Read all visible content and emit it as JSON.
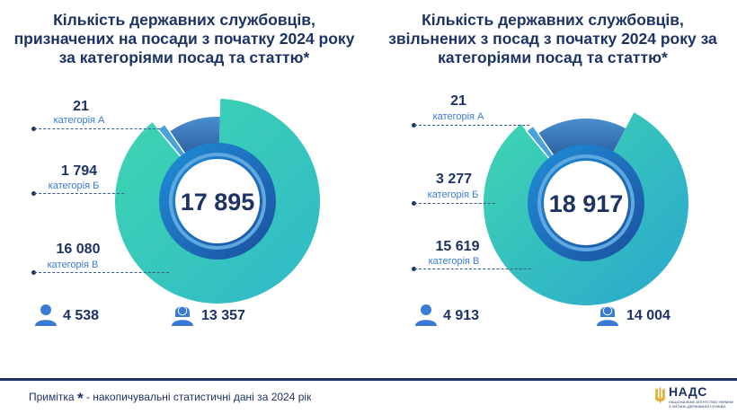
{
  "charts": [
    {
      "title_lines": [
        "Кількість державних службовців,",
        "призначених на посади з початку 2024 року",
        "за категоріями посад та статтю*"
      ],
      "total": "17 895",
      "categories": [
        {
          "value": "21",
          "label": "категорія А"
        },
        {
          "value": "1 794",
          "label": "категорія Б"
        },
        {
          "value": "16 080",
          "label": "категорія В"
        }
      ],
      "male": "4 538",
      "female": "13 357"
    },
    {
      "title_lines": [
        "Кількість державних службовців,",
        "звільнених з посад з початку 2024 року за",
        "категоріями посад та статтю*"
      ],
      "total": "18 917",
      "categories": [
        {
          "value": "21",
          "label": "категорія А"
        },
        {
          "value": "3 277",
          "label": "категорія Б"
        },
        {
          "value": "15 619",
          "label": "категорія В"
        }
      ],
      "male": "4 913",
      "female": "14 004"
    }
  ],
  "chart_data": [
    {
      "type": "pie",
      "title": "Кількість державних службовців, призначених на посади з початку 2024 року за категоріями посад та статтю*",
      "categories": [
        "категорія А",
        "категорія Б",
        "категорія В"
      ],
      "values": [
        21,
        1794,
        16080
      ],
      "total": 17895,
      "gender": {
        "male": 4538,
        "female": 13357
      }
    },
    {
      "type": "pie",
      "title": "Кількість державних службовців, звільнених з посад з початку 2024 року за категоріями посад та статтю*",
      "categories": [
        "категорія А",
        "категорія Б",
        "категорія В"
      ],
      "values": [
        21,
        3277,
        15619
      ],
      "total": 18917,
      "gender": {
        "male": 4913,
        "female": 14004
      }
    }
  ],
  "footer": {
    "note_prefix": "Примітка ",
    "note_star": "*",
    "note_text": " - накопичувальні статистичні дані за 2024 рік",
    "logo_text": "НАДС",
    "logo_sub_1": "НАЦІОНАЛЬНЕ АГЕНТСТВО УКРАЇНИ",
    "logo_sub_2": "З ПИТАНЬ ДЕРЖАВНОЇ СЛУЖБИ"
  },
  "colors": {
    "title": "#1d3366",
    "cat_a": "#4aa3d8",
    "cat_b": "#3f7fc4",
    "cat_v": "#3fd6b0",
    "inner_ring": "#1e6fc0",
    "category_label": "#3a7bd5"
  },
  "icons": [
    "male-person-icon",
    "female-person-icon",
    "trident-icon"
  ]
}
